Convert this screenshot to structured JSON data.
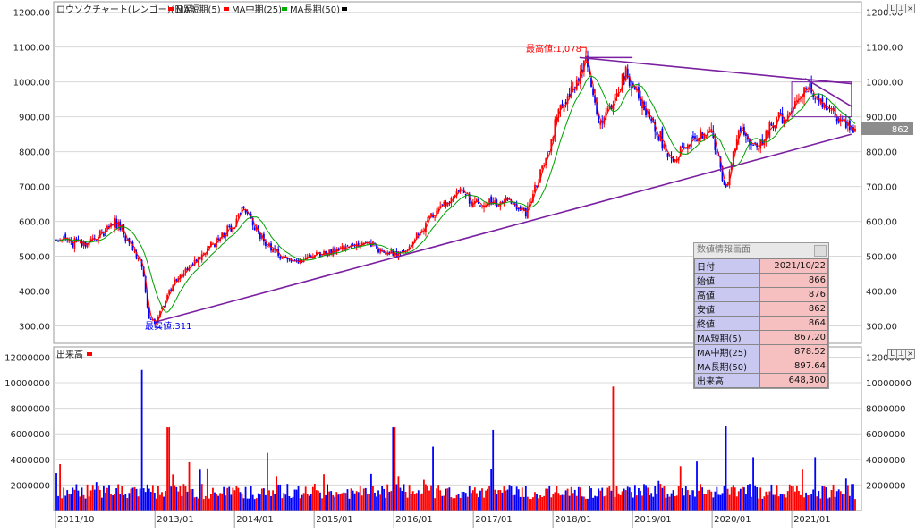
{
  "price_panel": {
    "legend": [
      {
        "label": "ロウソクチャート(レンゴー)(日足)",
        "color": "#000000"
      },
      {
        "label": "MA短期(5)",
        "color": "#ff0000"
      },
      {
        "label": "MA中期(25)",
        "color": "#ff0000"
      },
      {
        "label": "MA長期(50)",
        "color": "#00b000"
      }
    ],
    "y_ticks": [
      "1200.00",
      "1100.00",
      "1000.00",
      "900.00",
      "800.00",
      "700.00",
      "600.00",
      "500.00",
      "400.00",
      "300.00"
    ],
    "current_price_label": "862",
    "annotation_high": "最高値:1,078",
    "annotation_low": "最安値:311"
  },
  "volume_panel": {
    "title": "出来高",
    "y_ticks": [
      "12000000",
      "10000000",
      "8000000",
      "6000000",
      "4000000",
      "2000000"
    ]
  },
  "x_axis": [
    "2011/10",
    "2013/01",
    "2014/01",
    "2015/01",
    "2016/01",
    "2017/01",
    "2018/01",
    "2019/01",
    "2020/01",
    "2021/01"
  ],
  "panel_controls": [
    "L",
    "⊥",
    "×"
  ],
  "info_box": {
    "title": "数値情報画面",
    "rows": [
      {
        "label": "日付",
        "value": "2021/10/22"
      },
      {
        "label": "始値",
        "value": "866"
      },
      {
        "label": "高値",
        "value": "876"
      },
      {
        "label": "安値",
        "value": "862"
      },
      {
        "label": "終値",
        "value": "864"
      },
      {
        "label": "MA短期(5)",
        "value": "867.20"
      },
      {
        "label": "MA中期(25)",
        "value": "878.52"
      },
      {
        "label": "MA長期(50)",
        "value": "897.64"
      },
      {
        "label": "出来高",
        "value": "648,300"
      }
    ]
  },
  "colors": {
    "up": "#ff0000",
    "down": "#0000ff",
    "ma_short": "#ff0000",
    "ma_long": "#00a000",
    "trendline": "#7a1fa0",
    "high_label": "#ff0000",
    "low_label": "#0000ff"
  },
  "chart_data": {
    "type": "candlestick",
    "y_range": [
      250,
      1230
    ],
    "volume_range": [
      0,
      12800000
    ],
    "price_path": [
      {
        "date": "2011/10",
        "price": 550
      },
      {
        "date": "2012/03",
        "price": 535
      },
      {
        "date": "2012/07",
        "price": 605
      },
      {
        "date": "2012/11",
        "price": 480
      },
      {
        "date": "2012/12",
        "price": 330
      },
      {
        "date": "2013/01",
        "price": 311
      },
      {
        "date": "2013/04",
        "price": 430
      },
      {
        "date": "2013/09",
        "price": 520
      },
      {
        "date": "2014/01",
        "price": 590
      },
      {
        "date": "2014/02",
        "price": 650
      },
      {
        "date": "2014/05",
        "price": 550
      },
      {
        "date": "2014/10",
        "price": 480
      },
      {
        "date": "2015/01",
        "price": 500
      },
      {
        "date": "2015/05",
        "price": 520
      },
      {
        "date": "2015/09",
        "price": 545
      },
      {
        "date": "2015/12",
        "price": 505
      },
      {
        "date": "2016/03",
        "price": 515
      },
      {
        "date": "2016/06",
        "price": 600
      },
      {
        "date": "2016/11",
        "price": 690
      },
      {
        "date": "2017/01",
        "price": 650
      },
      {
        "date": "2017/06",
        "price": 660
      },
      {
        "date": "2017/09",
        "price": 630
      },
      {
        "date": "2017/12",
        "price": 780
      },
      {
        "date": "2018/02",
        "price": 930
      },
      {
        "date": "2018/04",
        "price": 975
      },
      {
        "date": "2018/06",
        "price": 1078
      },
      {
        "date": "2018/08",
        "price": 870
      },
      {
        "date": "2018/10",
        "price": 940
      },
      {
        "date": "2018/12",
        "price": 1030
      },
      {
        "date": "2019/04",
        "price": 880
      },
      {
        "date": "2019/07",
        "price": 780
      },
      {
        "date": "2019/10",
        "price": 840
      },
      {
        "date": "2020/01",
        "price": 860
      },
      {
        "date": "2020/03",
        "price": 690
      },
      {
        "date": "2020/05",
        "price": 860
      },
      {
        "date": "2020/08",
        "price": 820
      },
      {
        "date": "2020/10",
        "price": 870
      },
      {
        "date": "2021/01",
        "price": 920
      },
      {
        "date": "2021/03",
        "price": 995
      },
      {
        "date": "2021/06",
        "price": 930
      },
      {
        "date": "2021/08",
        "price": 905
      },
      {
        "date": "2021/10",
        "price": 864
      }
    ],
    "volume_spikes": [
      {
        "date": "2012/11",
        "volume": 11000000
      },
      {
        "date": "2013/03",
        "volume": 6500000
      },
      {
        "date": "2014/06",
        "volume": 4500000
      },
      {
        "date": "2016/01",
        "volume": 6500000
      },
      {
        "date": "2016/07",
        "volume": 5000000
      },
      {
        "date": "2017/04",
        "volume": 6300000
      },
      {
        "date": "2018/10",
        "volume": 9700000
      },
      {
        "date": "2020/03",
        "volume": 6600000
      }
    ],
    "trendlines": [
      {
        "from": {
          "date": "2013/01",
          "price": 311
        },
        "to": {
          "date": "2021/10",
          "price": 850
        }
      },
      {
        "from": {
          "date": "2018/05",
          "price": 1070
        },
        "to": {
          "date": "2021/10",
          "price": 995
        }
      },
      {
        "from": {
          "date": "2018/06",
          "price": 1070
        },
        "to": {
          "date": "2019/01",
          "price": 1070
        }
      },
      {
        "from": {
          "date": "2021/03",
          "price": 1010
        },
        "to": {
          "date": "2021/10",
          "price": 930
        }
      }
    ],
    "box_overlay": {
      "from": "2021/01",
      "to": "2021/10",
      "low": 900,
      "high": 1000
    }
  }
}
